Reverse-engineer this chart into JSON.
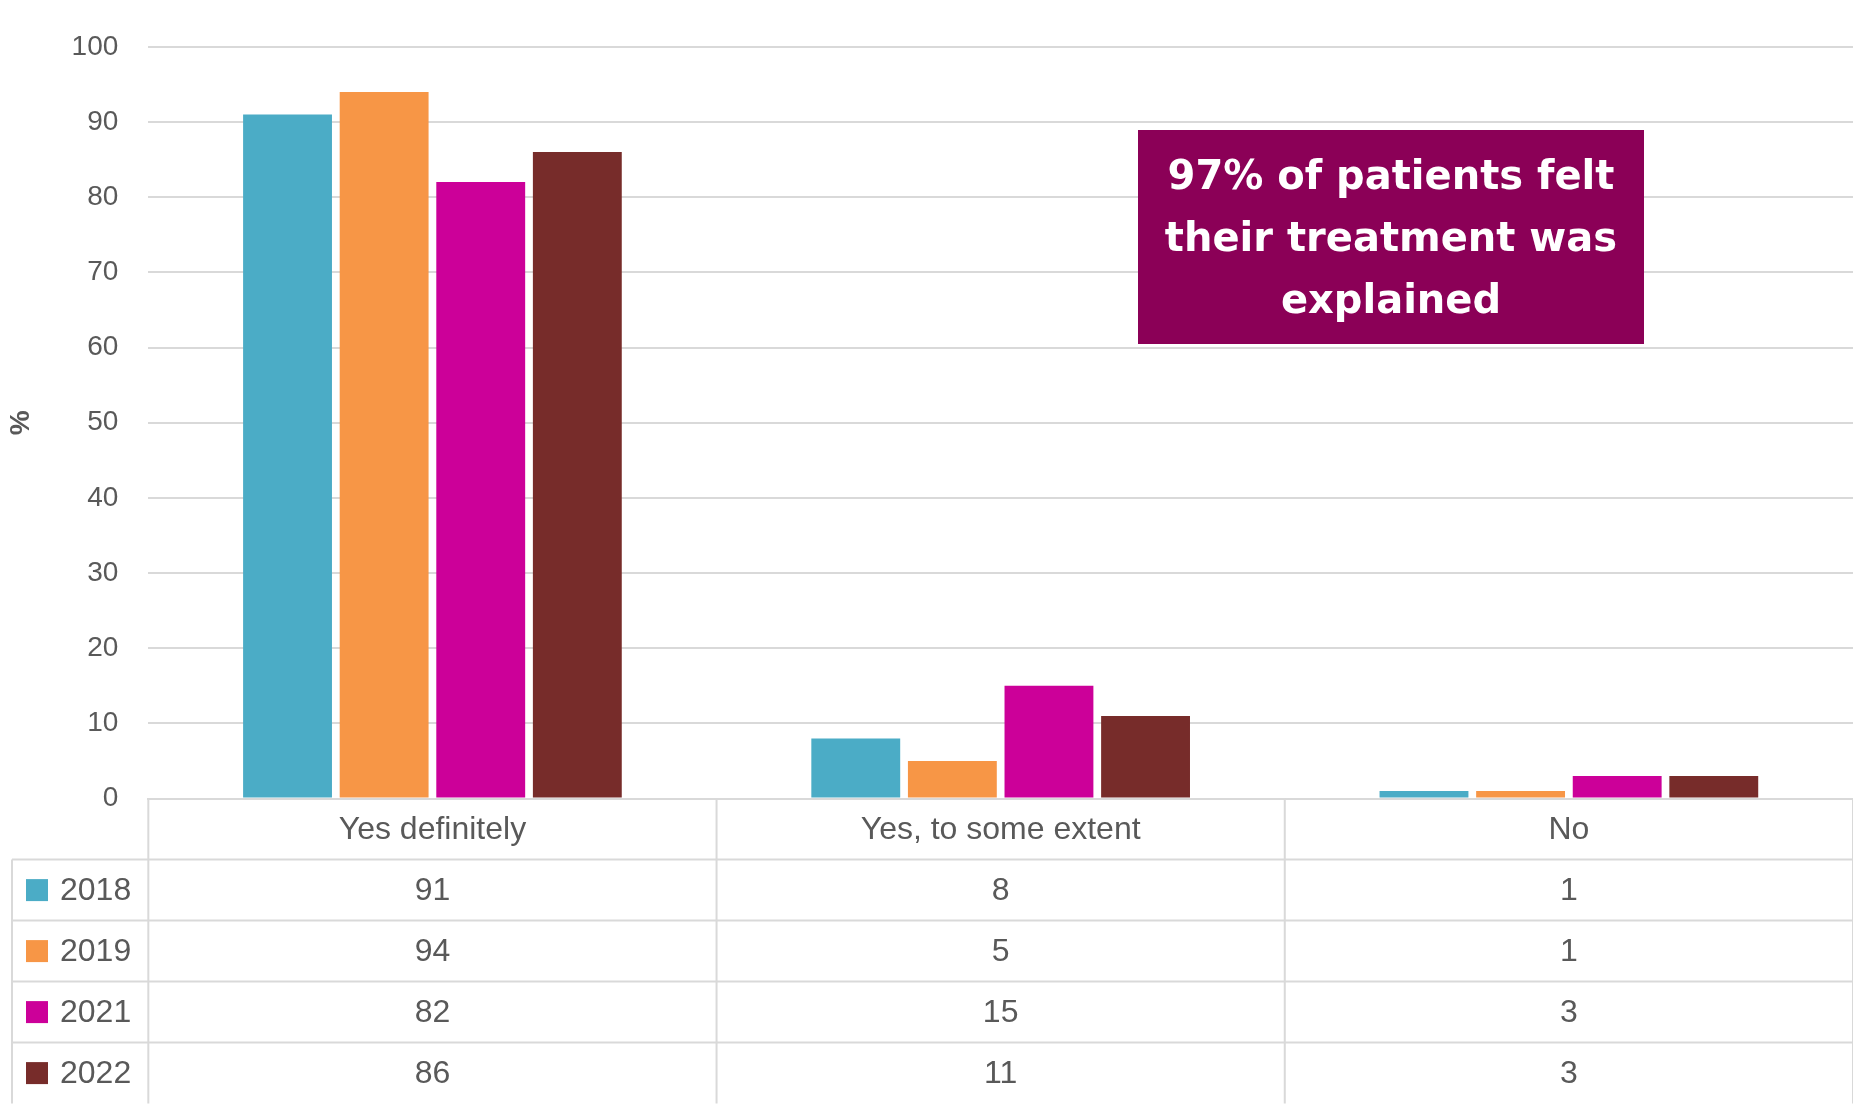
{
  "chart_data": {
    "type": "bar",
    "ylabel": "%",
    "categories": [
      "Yes definitely",
      "Yes, to some extent",
      "No"
    ],
    "series": [
      {
        "name": "2018",
        "color": "#4bacc6",
        "values": [
          91,
          8,
          1
        ]
      },
      {
        "name": "2019",
        "color": "#f79646",
        "values": [
          94,
          5,
          1
        ]
      },
      {
        "name": "2021",
        "color": "#cc0099",
        "values": [
          82,
          15,
          3
        ]
      },
      {
        "name": "2022",
        "color": "#772c2a",
        "values": [
          86,
          11,
          3
        ]
      }
    ],
    "ylim": [
      0,
      100
    ],
    "yticks": [
      0,
      10,
      20,
      30,
      40,
      50,
      60,
      70,
      80,
      90,
      100
    ],
    "grid": "y",
    "legend": "bottom",
    "data_labels": true,
    "annotations": [
      "97% of patients felt their treatment was explained"
    ]
  }
}
